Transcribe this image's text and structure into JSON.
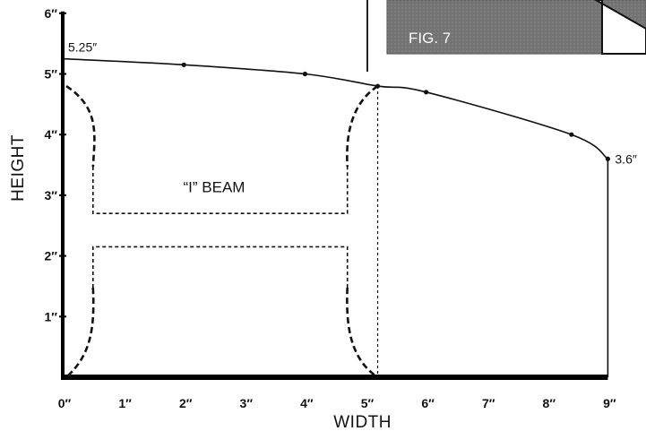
{
  "chart_data": {
    "type": "line",
    "xlabel": "WIDTH",
    "ylabel": "HEIGHT",
    "xlim": [
      0,
      9
    ],
    "ylim": [
      0,
      6
    ],
    "x_ticks": [
      "0″",
      "1″",
      "2″",
      "3″",
      "4″",
      "5″",
      "6″",
      "7″",
      "8″",
      "9″"
    ],
    "y_ticks": [
      "1″",
      "2″",
      "3″",
      "4″",
      "5″",
      "6″"
    ],
    "curve": {
      "x": [
        0,
        2,
        4,
        5.2,
        6,
        8.4,
        9
      ],
      "y": [
        5.25,
        5.15,
        5.0,
        4.8,
        4.7,
        4.0,
        3.6
      ]
    },
    "annotations": {
      "start_value": "5.25″",
      "end_value": "3.6″",
      "beam_label": "“I” BEAM"
    },
    "beam": {
      "width": 5.2,
      "height": 4.8,
      "flange_inner_top": 2.7,
      "flange_inner_bottom": 2.15,
      "web_left": 0.5,
      "web_right": 4.7
    },
    "figure_label": "FIG. 7"
  }
}
